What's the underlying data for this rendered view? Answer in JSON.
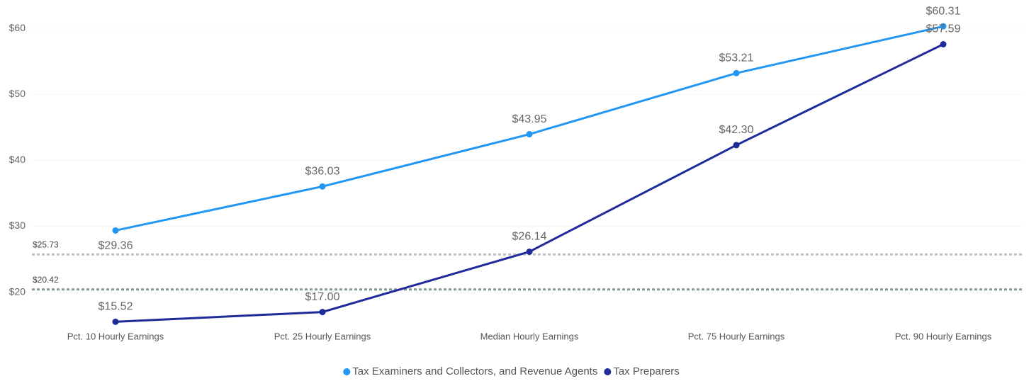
{
  "chart_data": {
    "type": "line",
    "categories": [
      "Pct. 10 Hourly Earnings",
      "Pct. 25 Hourly Earnings",
      "Median Hourly Earnings",
      "Pct. 75 Hourly Earnings",
      "Pct. 90 Hourly Earnings"
    ],
    "series": [
      {
        "name": "Tax Examiners and Collectors, and Revenue Agents",
        "color": "#2196f3",
        "values": [
          29.36,
          36.03,
          43.95,
          53.21,
          60.31
        ],
        "value_labels": [
          "$29.36",
          "$36.03",
          "$43.95",
          "$53.21",
          "$60.31"
        ]
      },
      {
        "name": "Tax Preparers",
        "color": "#1f2a9b",
        "values": [
          15.52,
          17.0,
          26.14,
          42.3,
          57.59
        ],
        "value_labels": [
          "$15.52",
          "$17.00",
          "$26.14",
          "$42.30",
          "$57.59"
        ]
      }
    ],
    "ylim": [
      14.7,
      64.3
    ],
    "yticks": [
      {
        "value": 20,
        "label": "$20"
      },
      {
        "value": 30,
        "label": "$30"
      },
      {
        "value": 40,
        "label": "$40"
      },
      {
        "value": 50,
        "label": "$50"
      },
      {
        "value": 60,
        "label": "$60"
      }
    ],
    "grid": true,
    "reference_lines": [
      {
        "value": 25.73,
        "label": "$25.73",
        "color": "#c0c0c0"
      },
      {
        "value": 20.42,
        "label": "$20.42",
        "color": "#7f9b8e"
      }
    ],
    "legend": "bottom"
  }
}
